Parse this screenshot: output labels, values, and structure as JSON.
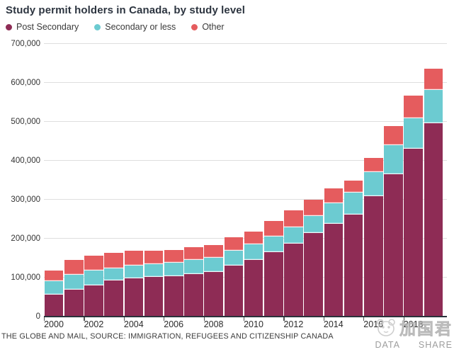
{
  "title": "Study permit holders in Canada, by study level",
  "footer": "THE GLOBE AND MAIL, SOURCE: IMMIGRATION, REFUGEES AND CITIZENSHIP CANADA",
  "watermark": {
    "logo": "panda-face-icon",
    "name": "加国君",
    "tagline_data": "DATA",
    "tagline_share": "SHARE"
  },
  "chart_data": {
    "type": "bar",
    "stacked": true,
    "title": "Study permit holders in Canada, by study level",
    "xlabel": "",
    "ylabel": "",
    "grid": "horizontal",
    "legend_position": "top-left",
    "ylim": [
      0,
      700000
    ],
    "ytick_interval": 100000,
    "ytick_labels": [
      "0",
      "100,000",
      "200,000",
      "300,000",
      "400,000",
      "500,000",
      "600,000",
      "700,000"
    ],
    "xtick_labels": [
      "2000",
      "2002",
      "2004",
      "2006",
      "2008",
      "2010",
      "2012",
      "2014",
      "2016",
      "2018"
    ],
    "categories": [
      2000,
      2001,
      2002,
      2003,
      2004,
      2005,
      2006,
      2007,
      2008,
      2009,
      2010,
      2011,
      2012,
      2013,
      2014,
      2015,
      2016,
      2017,
      2018,
      2019
    ],
    "series": [
      {
        "name": "Post Secondary",
        "color": "#8E2C55",
        "values": [
          56000,
          70000,
          80000,
          93000,
          98000,
          101000,
          104000,
          109000,
          115000,
          131000,
          145000,
          166000,
          188000,
          214000,
          239000,
          262000,
          310000,
          366000,
          431000,
          497000
        ]
      },
      {
        "name": "Secondary or less",
        "color": "#6CCBD1",
        "values": [
          35000,
          38000,
          39000,
          31000,
          33000,
          33000,
          34000,
          36000,
          36000,
          38000,
          40000,
          39000,
          42000,
          44000,
          52000,
          56000,
          61000,
          74000,
          79000,
          84000
        ]
      },
      {
        "name": "Other",
        "color": "#E55C5E",
        "values": [
          28000,
          38000,
          38000,
          40000,
          38000,
          35000,
          33000,
          33000,
          33000,
          35000,
          33000,
          40000,
          42000,
          42000,
          39000,
          32000,
          37000,
          50000,
          58000,
          56000
        ]
      }
    ],
    "totals": [
      119000,
      146000,
      157000,
      164000,
      169000,
      169000,
      171000,
      178000,
      184000,
      204000,
      218000,
      245000,
      272000,
      300000,
      330000,
      350000,
      408000,
      490000,
      568000,
      637000
    ]
  }
}
